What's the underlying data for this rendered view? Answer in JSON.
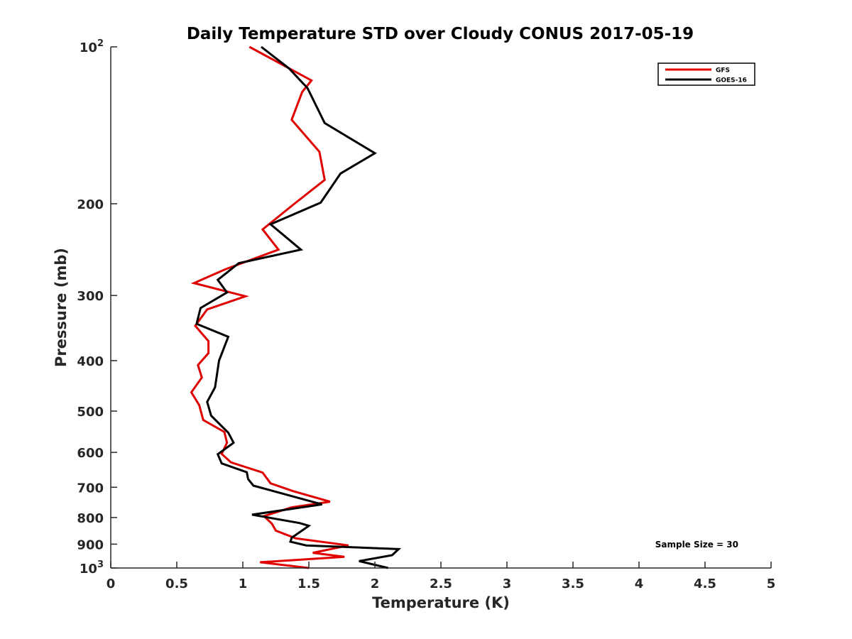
{
  "chart_data": {
    "type": "line",
    "title": "Daily Temperature STD over Cloudy CONUS 2017-05-19",
    "xlabel": "Temperature (K)",
    "ylabel": "Pressure (mb)",
    "xlim": [
      0,
      5
    ],
    "ylim": [
      100,
      1000
    ],
    "y_scale": "log",
    "y_reversed": true,
    "grid": false,
    "legend_position": "top-right",
    "x_ticks": [
      0,
      0.5,
      1,
      1.5,
      2,
      2.5,
      3,
      3.5,
      4,
      4.5,
      5
    ],
    "x_tick_labels": [
      "0",
      "0.5",
      "1",
      "1.5",
      "2",
      "2.5",
      "3",
      "3.5",
      "4",
      "4.5",
      "5"
    ],
    "y_ticks": [
      100,
      200,
      300,
      400,
      500,
      600,
      700,
      800,
      900,
      1000
    ],
    "y_tick_labels": [
      {
        "base": "10",
        "exp": "2"
      },
      {
        "base": "200",
        "exp": ""
      },
      {
        "base": "300",
        "exp": ""
      },
      {
        "base": "400",
        "exp": ""
      },
      {
        "base": "500",
        "exp": ""
      },
      {
        "base": "600",
        "exp": ""
      },
      {
        "base": "700",
        "exp": ""
      },
      {
        "base": "800",
        "exp": ""
      },
      {
        "base": "900",
        "exp": ""
      },
      {
        "base": "10",
        "exp": "3"
      }
    ],
    "annotation": "Sample Size = 30",
    "series": [
      {
        "name": "GFS",
        "color": "#e00000",
        "points": [
          [
            1.05,
            100
          ],
          [
            1.52,
            116
          ],
          [
            1.45,
            122
          ],
          [
            1.37,
            138
          ],
          [
            1.58,
            159
          ],
          [
            1.62,
            180
          ],
          [
            1.38,
            201
          ],
          [
            1.15,
            224
          ],
          [
            1.27,
            245
          ],
          [
            0.87,
            267
          ],
          [
            0.63,
            284
          ],
          [
            1.02,
            301
          ],
          [
            0.73,
            319
          ],
          [
            0.64,
            343
          ],
          [
            0.74,
            367
          ],
          [
            0.74,
            387
          ],
          [
            0.66,
            408
          ],
          [
            0.69,
            431
          ],
          [
            0.61,
            460
          ],
          [
            0.67,
            487
          ],
          [
            0.7,
            520
          ],
          [
            0.86,
            548
          ],
          [
            0.88,
            575
          ],
          [
            0.84,
            604
          ],
          [
            0.91,
            627
          ],
          [
            1.15,
            656
          ],
          [
            1.21,
            688
          ],
          [
            1.38,
            712
          ],
          [
            1.66,
            746
          ],
          [
            1.37,
            765
          ],
          [
            1.16,
            795
          ],
          [
            1.22,
            822
          ],
          [
            1.25,
            848
          ],
          [
            1.4,
            877
          ],
          [
            1.8,
            905
          ],
          [
            1.53,
            935
          ],
          [
            1.77,
            952
          ],
          [
            1.13,
            975
          ],
          [
            1.5,
            1000
          ]
        ]
      },
      {
        "name": "GOES-16",
        "color": "#000000",
        "points": [
          [
            1.14,
            100
          ],
          [
            1.35,
            110
          ],
          [
            1.49,
            120
          ],
          [
            1.62,
            140
          ],
          [
            2.0,
            160
          ],
          [
            1.74,
            175
          ],
          [
            1.59,
            199
          ],
          [
            1.21,
            219
          ],
          [
            1.44,
            245
          ],
          [
            0.97,
            260
          ],
          [
            0.81,
            280
          ],
          [
            0.88,
            296
          ],
          [
            0.68,
            317
          ],
          [
            0.65,
            340
          ],
          [
            0.89,
            360
          ],
          [
            0.82,
            400
          ],
          [
            0.79,
            450
          ],
          [
            0.73,
            480
          ],
          [
            0.76,
            510
          ],
          [
            0.89,
            550
          ],
          [
            0.93,
            575
          ],
          [
            0.81,
            605
          ],
          [
            0.84,
            630
          ],
          [
            1.03,
            655
          ],
          [
            1.04,
            675
          ],
          [
            1.08,
            695
          ],
          [
            1.6,
            755
          ],
          [
            1.07,
            790
          ],
          [
            1.43,
            820
          ],
          [
            1.5,
            830
          ],
          [
            1.37,
            875
          ],
          [
            1.36,
            890
          ],
          [
            1.48,
            905
          ],
          [
            2.18,
            920
          ],
          [
            2.13,
            945
          ],
          [
            1.88,
            970
          ],
          [
            2.1,
            1000
          ]
        ]
      }
    ]
  }
}
